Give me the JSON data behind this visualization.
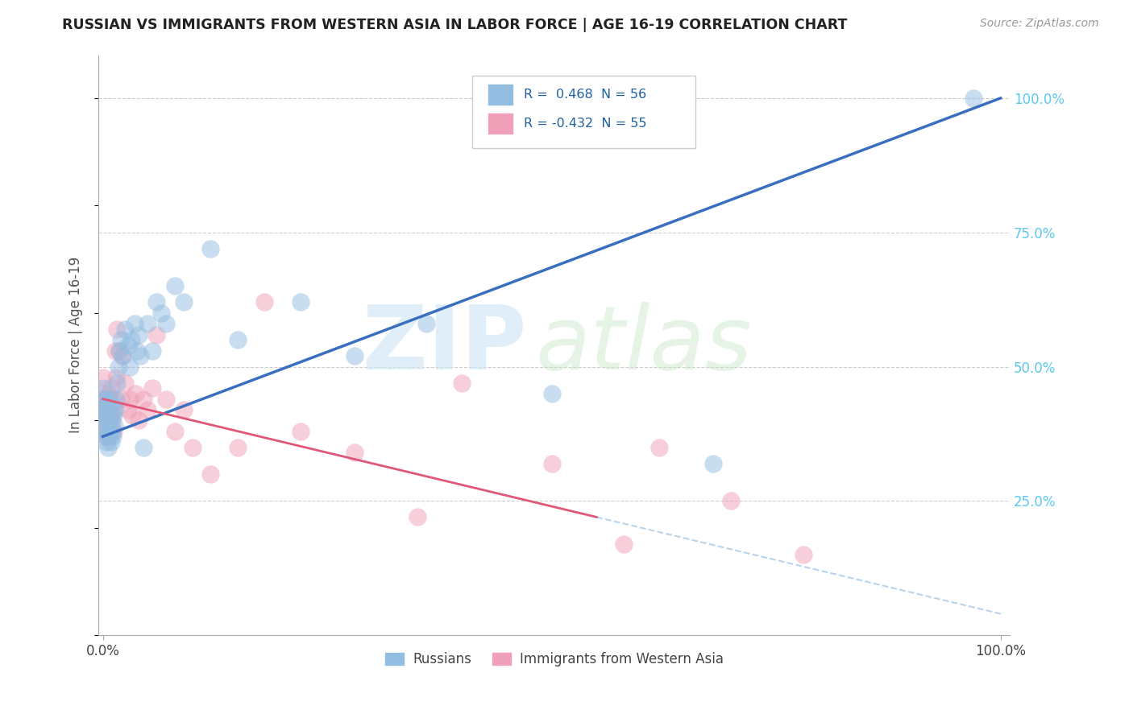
{
  "title": "RUSSIAN VS IMMIGRANTS FROM WESTERN ASIA IN LABOR FORCE | AGE 16-19 CORRELATION CHART",
  "source": "Source: ZipAtlas.com",
  "ylabel": "In Labor Force | Age 16-19",
  "legend_label1": "Russians",
  "legend_label2": "Immigrants from Western Asia",
  "blue_color": "#92bce0",
  "pink_color": "#f0a0b8",
  "blue_line_color": "#3a6fbf",
  "pink_line_color": "#e05878",
  "dashed_line_color": "#b8d4ec",
  "blue_scatter_x": [
    0.0,
    0.0,
    0.001,
    0.001,
    0.002,
    0.002,
    0.003,
    0.003,
    0.003,
    0.004,
    0.004,
    0.005,
    0.005,
    0.006,
    0.007,
    0.007,
    0.008,
    0.008,
    0.009,
    0.009,
    0.01,
    0.01,
    0.011,
    0.012,
    0.013,
    0.014,
    0.015,
    0.016,
    0.017,
    0.018,
    0.02,
    0.022,
    0.025,
    0.028,
    0.03,
    0.032,
    0.035,
    0.038,
    0.04,
    0.042,
    0.045,
    0.05,
    0.055,
    0.06,
    0.065,
    0.07,
    0.08,
    0.09,
    0.12,
    0.15,
    0.22,
    0.28,
    0.36,
    0.5,
    0.68,
    0.97
  ],
  "blue_scatter_y": [
    0.42,
    0.46,
    0.4,
    0.44,
    0.38,
    0.43,
    0.37,
    0.4,
    0.44,
    0.36,
    0.41,
    0.38,
    0.42,
    0.35,
    0.4,
    0.44,
    0.37,
    0.41,
    0.36,
    0.39,
    0.38,
    0.43,
    0.37,
    0.41,
    0.39,
    0.42,
    0.44,
    0.47,
    0.5,
    0.53,
    0.55,
    0.52,
    0.57,
    0.54,
    0.5,
    0.55,
    0.58,
    0.53,
    0.56,
    0.52,
    0.35,
    0.58,
    0.53,
    0.62,
    0.6,
    0.58,
    0.65,
    0.62,
    0.72,
    0.55,
    0.62,
    0.52,
    0.58,
    0.45,
    0.32,
    1.0
  ],
  "pink_scatter_x": [
    0.0,
    0.0,
    0.001,
    0.001,
    0.002,
    0.002,
    0.003,
    0.003,
    0.004,
    0.004,
    0.005,
    0.005,
    0.006,
    0.006,
    0.007,
    0.007,
    0.008,
    0.009,
    0.009,
    0.01,
    0.011,
    0.012,
    0.013,
    0.014,
    0.015,
    0.016,
    0.018,
    0.02,
    0.022,
    0.025,
    0.028,
    0.03,
    0.033,
    0.036,
    0.04,
    0.045,
    0.05,
    0.055,
    0.06,
    0.07,
    0.08,
    0.09,
    0.1,
    0.12,
    0.15,
    0.18,
    0.22,
    0.28,
    0.35,
    0.4,
    0.5,
    0.58,
    0.62,
    0.7,
    0.78
  ],
  "pink_scatter_y": [
    0.44,
    0.48,
    0.41,
    0.45,
    0.38,
    0.43,
    0.4,
    0.44,
    0.37,
    0.42,
    0.39,
    0.44,
    0.37,
    0.41,
    0.4,
    0.45,
    0.38,
    0.41,
    0.46,
    0.4,
    0.44,
    0.38,
    0.42,
    0.53,
    0.48,
    0.57,
    0.53,
    0.44,
    0.52,
    0.47,
    0.42,
    0.44,
    0.41,
    0.45,
    0.4,
    0.44,
    0.42,
    0.46,
    0.56,
    0.44,
    0.38,
    0.42,
    0.35,
    0.3,
    0.35,
    0.62,
    0.38,
    0.34,
    0.22,
    0.47,
    0.32,
    0.17,
    0.35,
    0.25,
    0.15
  ],
  "blue_line_x0": 0.0,
  "blue_line_y0": 0.37,
  "blue_line_x1": 1.0,
  "blue_line_y1": 1.0,
  "pink_line_x0": 0.0,
  "pink_line_y0": 0.44,
  "pink_line_x1": 0.55,
  "pink_line_y1": 0.22,
  "dashed_line_x0": 0.55,
  "dashed_line_y0": 0.22,
  "dashed_line_x1": 1.0,
  "dashed_line_y1": 0.04,
  "y_tick_vals": [
    0.25,
    0.5,
    0.75,
    1.0
  ],
  "xlim": [
    -0.005,
    1.01
  ],
  "ylim": [
    0.0,
    1.08
  ]
}
